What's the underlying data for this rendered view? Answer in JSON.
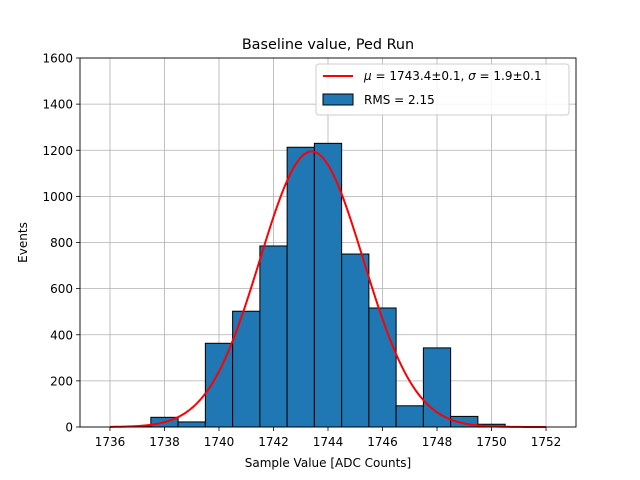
{
  "chart_data": {
    "type": "bar",
    "title": "Baseline value, Ped Run",
    "xlabel": "Sample Value [ADC Counts]",
    "ylabel": "Events",
    "xlim": [
      1734.9,
      1753.1
    ],
    "ylim": [
      0,
      1600
    ],
    "xticks": [
      1736,
      1738,
      1740,
      1742,
      1744,
      1746,
      1748,
      1750,
      1752
    ],
    "yticks": [
      0,
      200,
      400,
      600,
      800,
      1000,
      1200,
      1400,
      1600
    ],
    "grid": true,
    "legend_position": "top-right",
    "bins": [
      {
        "from": 1736.5,
        "to": 1737.5,
        "value": 2
      },
      {
        "from": 1737.5,
        "to": 1738.5,
        "value": 42
      },
      {
        "from": 1738.5,
        "to": 1739.5,
        "value": 22
      },
      {
        "from": 1739.5,
        "to": 1740.5,
        "value": 363
      },
      {
        "from": 1740.5,
        "to": 1741.5,
        "value": 502
      },
      {
        "from": 1741.5,
        "to": 1742.5,
        "value": 785
      },
      {
        "from": 1742.5,
        "to": 1743.5,
        "value": 1213
      },
      {
        "from": 1743.5,
        "to": 1744.5,
        "value": 1230
      },
      {
        "from": 1744.5,
        "to": 1745.5,
        "value": 750
      },
      {
        "from": 1745.5,
        "to": 1746.5,
        "value": 516
      },
      {
        "from": 1746.5,
        "to": 1747.5,
        "value": 92
      },
      {
        "from": 1747.5,
        "to": 1748.5,
        "value": 343
      },
      {
        "from": 1748.5,
        "to": 1749.5,
        "value": 46
      },
      {
        "from": 1749.5,
        "to": 1750.5,
        "value": 12
      },
      {
        "from": 1750.5,
        "to": 1751.5,
        "value": 1
      }
    ],
    "fit": {
      "mu": 1743.4,
      "sigma": 1.9,
      "amplitude": 1195,
      "x_range": [
        1736,
        1752
      ]
    },
    "series": [
      {
        "name": "fit",
        "legend_label_parts": [
          "μ",
          " = 1743.4±0.1, ",
          "σ",
          " = 1.9±0.1"
        ],
        "color": "#ff0000"
      },
      {
        "name": "histogram",
        "legend_label": "RMS = 2.15",
        "color": "#1f77b4"
      }
    ]
  }
}
